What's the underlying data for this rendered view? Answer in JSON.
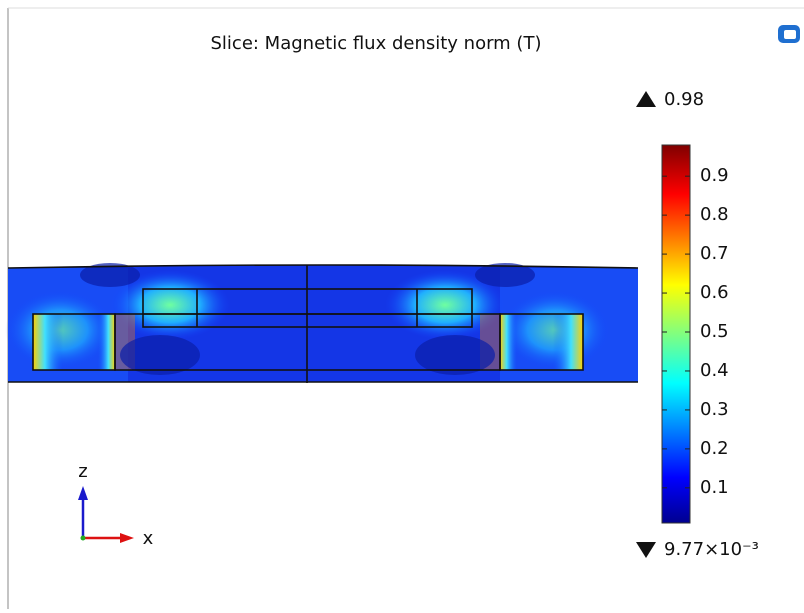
{
  "title": "Slice: Magnetic flux density norm (T)",
  "colorbar": {
    "max": 0.98,
    "min": {
      "value": 0.00977,
      "label": "9.77×10⁻³"
    },
    "ticks": [
      0.1,
      0.2,
      0.3,
      0.4,
      0.5,
      0.6,
      0.7,
      0.8,
      0.9
    ]
  },
  "axes": {
    "z": "z",
    "x": "x"
  }
}
